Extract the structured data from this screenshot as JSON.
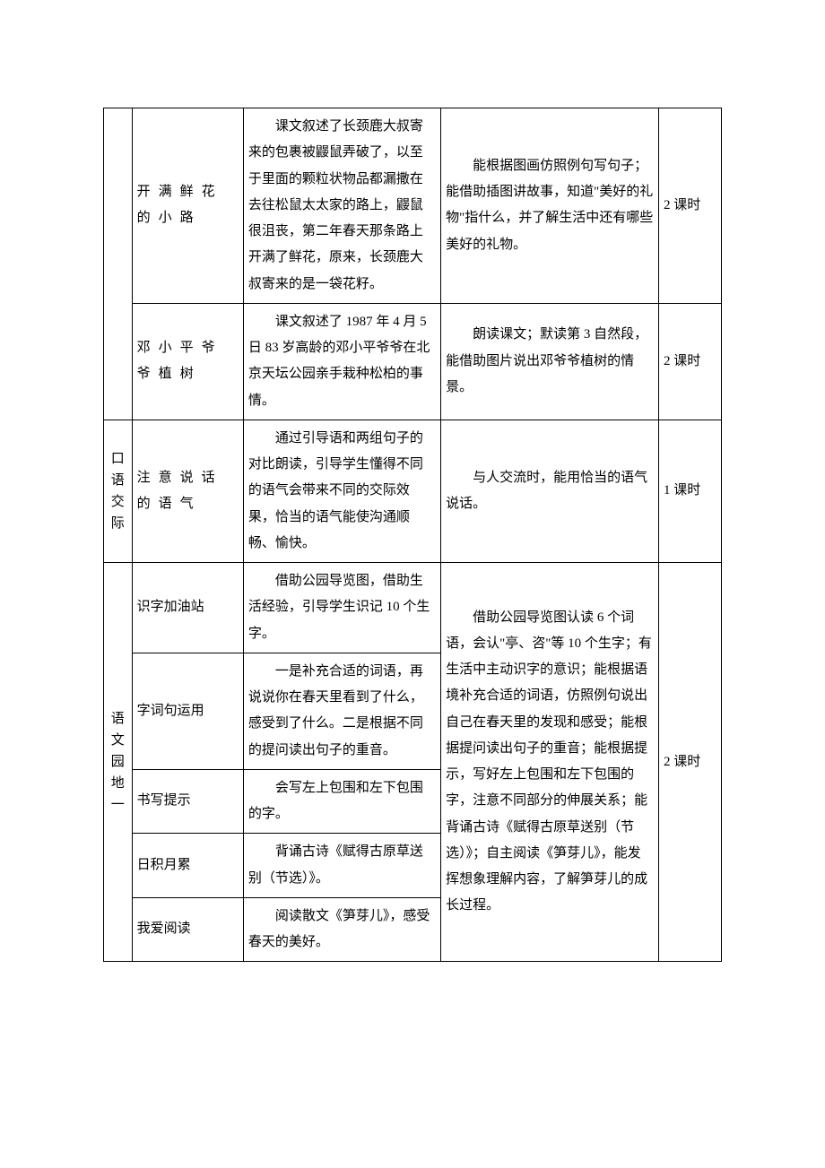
{
  "rows": [
    {
      "c2": "开满鲜花的小路",
      "c3": "课文叙述了长颈鹿大叔寄来的包裹被鼹鼠弄破了，以至于里面的颗粒状物品都漏撒在去往松鼠太太家的路上，鼹鼠很沮丧，第二年春天那条路上开满了鲜花，原来，长颈鹿大叔寄来的是一袋花籽。",
      "c4": "能根据图画仿照例句写句子；能借助插图讲故事，知道\"美好的礼物\"指什么，并了解生活中还有哪些美好的礼物。",
      "c5": "2 课时"
    },
    {
      "c2": "邓小平爷爷植树",
      "c3": "课文叙述了 1987 年 4 月 5 日 83 岁高龄的邓小平爷爷在北京天坛公园亲手栽种松柏的事情。",
      "c4": "朗读课文；默读第 3 自然段，能借助图片说出邓爷爷植树的情景。",
      "c5": "2 课时"
    },
    {
      "c1": "口语交际",
      "c2": "注意说话的语气",
      "c3": "通过引导语和两组句子的对比朗读，引导学生懂得不同的语气会带来不同的交际效果，恰当的语气能使沟通顺畅、愉快。",
      "c4": "与人交流时，能用恰当的语气说话。",
      "c5": "1 课时"
    },
    {
      "c1": "语文园地一",
      "c2a": "识字加油站",
      "c3a": "借助公园导览图，借助生活经验，引导学生识记 10 个生字。",
      "c2b": "字词句运用",
      "c3b": "一是补充合适的词语，再说说你在春天里看到了什么，感受到了什么。二是根据不同的提问读出句子的重音。",
      "c2c": "书写提示",
      "c3c": "会写左上包围和左下包围的字。",
      "c2d": "日积月累",
      "c3d": "背诵古诗《赋得古原草送别（节选）》。",
      "c2e": "我爱阅读",
      "c3e": "阅读散文《笋芽儿》，感受春天的美好。",
      "c4": "借助公园导览图认读 6 个词语，会认\"亭、咨\"等 10 个生字；有生活中主动识字的意识；能根据语境补充合适的词语，仿照例句说出自己在春天里的发现和感受；能根据提问读出句子的重音；能根据提示，写好左上包围和左下包围的字，注意不同部分的伸展关系；能背诵古诗《赋得古原草送别（节选）》；自主阅读《笋芽儿》，能发挥想象理解内容，了解笋芽儿的成长过程。",
      "c5": "2 课时"
    }
  ]
}
